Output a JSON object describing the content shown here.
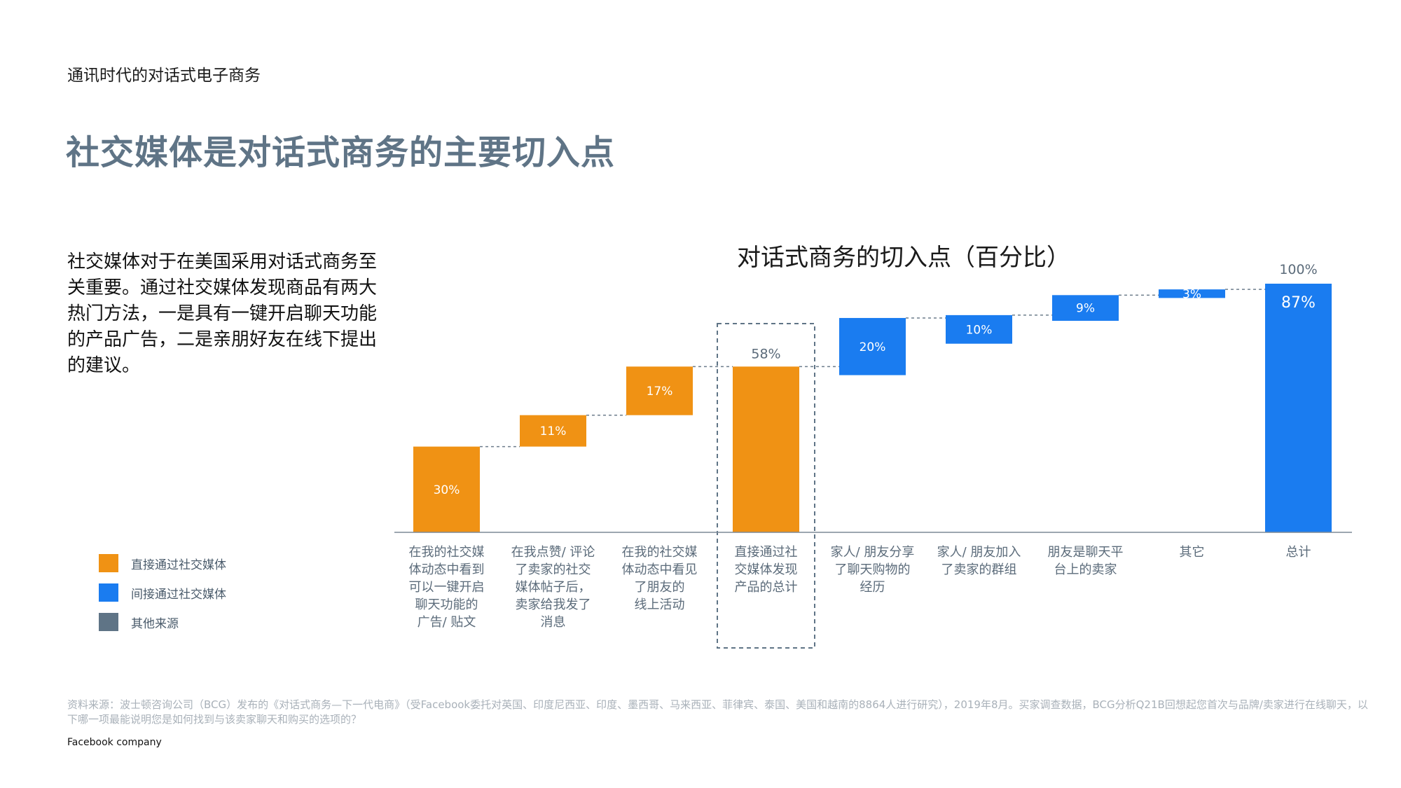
{
  "header": {
    "eyebrow": "通讯时代的对话式电子商务",
    "title": "社交媒体是对话式商务的主要切入点"
  },
  "body_text": "社交媒体对于在美国采用对话式商务至关重要。通过社交媒体发现商品有两大热门方法，一是具有一键开启聊天功能的产品广告，二是亲朋好友在线下提出的建议。",
  "legend": [
    {
      "label": "直接通过社交媒体",
      "color": "#f09214"
    },
    {
      "label": "间接通过社交媒体",
      "color": "#1a7cf0"
    },
    {
      "label": "其他来源",
      "color": "#5f7486"
    }
  ],
  "chart_data": {
    "type": "waterfall",
    "title": "对话式商务的切入点（百分比）",
    "ylim": [
      0,
      100
    ],
    "categories": [
      "在我的社交媒体动态中看到可以一键开启聊天功能的广告/ 贴文",
      "在我点赞/ 评论了卖家的社交媒体帖子后，卖家给我发了消息",
      "在我的社交媒体动态中看见了朋友的线上活动",
      "直接通过社交媒体发现产品的总计",
      "家人/ 朋友分享了聊天购物的经历",
      "家人/ 朋友加入了卖家的群组",
      "朋友是聊天平台上的卖家",
      "其它",
      "总计"
    ],
    "category_lines": [
      [
        "在我的社交媒",
        "体动态中看到",
        "可以一键开启",
        "聊天功能的",
        "广告/ 贴文"
      ],
      [
        "在我点赞/ 评论",
        "了卖家的社交",
        "媒体帖子后，",
        "卖家给我发了",
        "消息"
      ],
      [
        "在我的社交媒",
        "体动态中看见",
        "了朋友的",
        "线上活动"
      ],
      [
        "直接通过社",
        "交媒体发现",
        "产品的总计"
      ],
      [
        "家人/ 朋友分享",
        "了聊天购物的",
        "经历"
      ],
      [
        "家人/ 朋友加入",
        "了卖家的群组"
      ],
      [
        "朋友是聊天平",
        "台上的卖家"
      ],
      [
        "其它"
      ],
      [
        "总计"
      ]
    ],
    "bars": [
      {
        "base": 0,
        "value": 30,
        "label": "30%",
        "group": "direct"
      },
      {
        "base": 30,
        "value": 11,
        "label": "11%",
        "group": "direct"
      },
      {
        "base": 41,
        "value": 17,
        "label": "17%",
        "group": "direct"
      },
      {
        "base": 0,
        "value": 58,
        "label": "58%",
        "group": "direct",
        "label_position": "above"
      },
      {
        "base": 55,
        "value": 20,
        "label": "20%",
        "group": "indirect"
      },
      {
        "base": 66,
        "value": 10,
        "label": "10%",
        "group": "indirect"
      },
      {
        "base": 74,
        "value": 9,
        "label": "9%",
        "group": "indirect"
      },
      {
        "base": 82,
        "value": 3,
        "label": "3%",
        "group": "indirect"
      },
      {
        "base": 0,
        "value": 87,
        "label": "87%",
        "group": "indirect",
        "label_position": "top-inside"
      }
    ],
    "total_label": "100%",
    "highlight_category_index": 3,
    "colors": {
      "direct": "#f09214",
      "indirect": "#1a7cf0",
      "other": "#5f7486"
    }
  },
  "source_text": "资料来源：波士顿咨询公司（BCG）发布的《对话式商务—下一代电商》（受Facebook委托对英国、印度尼西亚、印度、墨西哥、马来西亚、菲律宾、泰国、美国和越南的8864人进行研究），2019年8月。买家调查数据，BCG分析Q21B回想起您首次与品牌/卖家进行在线聊天，以下哪一项最能说明您是如何找到与该卖家聊天和购买的选项的？",
  "footer": "Facebook company"
}
